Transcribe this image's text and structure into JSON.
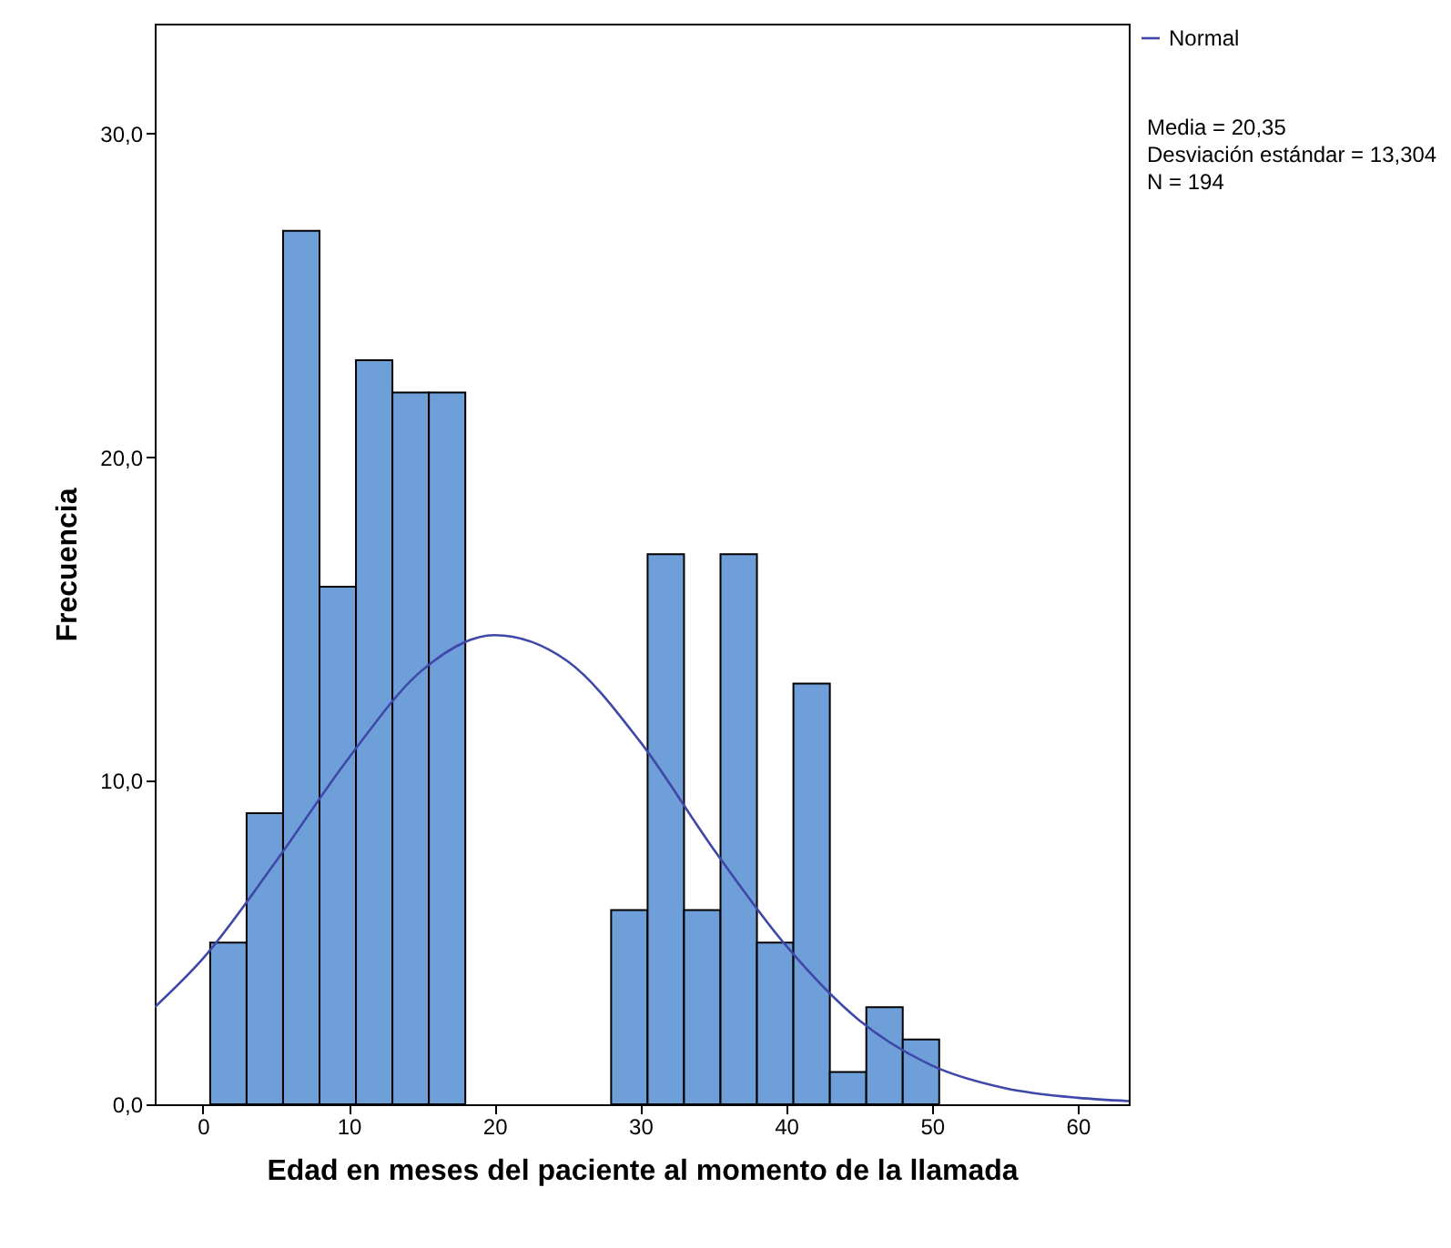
{
  "chart_data": {
    "type": "histogram",
    "xlabel": "Edad en meses del paciente al momento de la llamada",
    "ylabel": "Frecuencia",
    "bins": [
      0.5,
      3,
      5.5,
      8,
      10.5,
      13,
      15.5,
      18,
      20.5,
      23,
      25.5,
      28,
      30.5,
      33,
      35.5,
      38,
      40.5,
      43,
      45.5,
      48,
      50.5
    ],
    "values": [
      5,
      9,
      27,
      16,
      23,
      22,
      22,
      0,
      0,
      0,
      0,
      6,
      17,
      6,
      17,
      5,
      13,
      1,
      3,
      2
    ],
    "color": "#6f9fd8",
    "series": [
      {
        "type": "line",
        "name": "Normal",
        "color": "#3f48a8",
        "x": [
          -3.3,
          0,
          5,
          10,
          15,
          20,
          25,
          30,
          35,
          40,
          45,
          50,
          55,
          60,
          63.5
        ],
        "values": [
          3.0,
          4.5,
          7.5,
          10.7,
          13.4,
          14.5,
          13.7,
          11.2,
          7.9,
          4.9,
          2.6,
          1.2,
          0.5,
          0.2,
          0.1
        ]
      }
    ],
    "xlim": [
      -3.3,
      63.5
    ],
    "xticks": [
      0,
      10,
      20,
      30,
      40,
      50,
      60
    ],
    "ylim": [
      0,
      33.4
    ],
    "yticks": [
      {
        "value": 0,
        "label": "0,0"
      },
      {
        "value": 10,
        "label": "10,0"
      },
      {
        "value": 20,
        "label": "20,0"
      },
      {
        "value": 30,
        "label": "30,0"
      }
    ],
    "grid": false,
    "legend": "top right",
    "annotations": [
      "Media = 20,35",
      "Desviación estándar = 13,304",
      "N = 194"
    ]
  }
}
